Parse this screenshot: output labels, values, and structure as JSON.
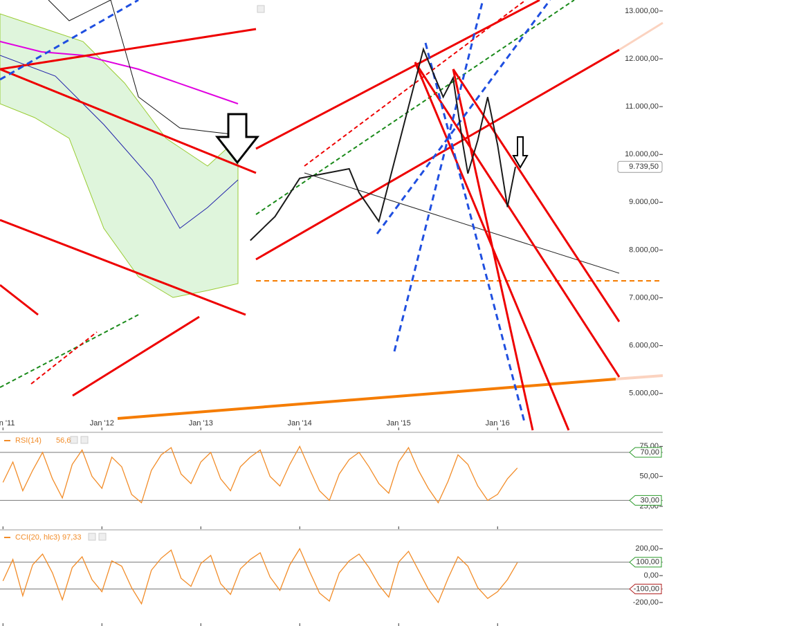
{
  "chart_data": [
    {
      "type": "line",
      "name": "price",
      "x": [
        2013.5,
        2013.75,
        2014.0,
        2014.25,
        2014.5,
        2014.6,
        2014.8,
        2014.95,
        2015.1,
        2015.25,
        2015.35,
        2015.45,
        2015.55,
        2015.65,
        2015.7,
        2015.8,
        2015.9,
        2016.0,
        2016.1,
        2016.18
      ],
      "values": [
        8200,
        8700,
        9500,
        9600,
        9700,
        9200,
        8600,
        9800,
        11000,
        12200,
        11700,
        11200,
        11600,
        10200,
        9600,
        10300,
        11200,
        10200,
        8900,
        9739.5
      ],
      "color": "#1a1a1a",
      "last": {
        "value": 9739.5,
        "label": "9.739,50"
      },
      "xlim": [
        2010.97,
        2017.67
      ],
      "xticks": [
        {
          "value": 2011,
          "label": "Jan '11"
        },
        {
          "value": 2012,
          "label": "Jan '12"
        },
        {
          "value": 2013,
          "label": "Jan '13"
        },
        {
          "value": 2014,
          "label": "Jan '14"
        },
        {
          "value": 2015,
          "label": "Jan '15"
        },
        {
          "value": 2016,
          "label": "Jan '16"
        }
      ],
      "ylim": [
        4230,
        13230
      ],
      "yticks": [
        {
          "value": 13000,
          "label": "13.000,00"
        },
        {
          "value": 12000,
          "label": "12.000,00"
        },
        {
          "value": 11000,
          "label": "11.000,00"
        },
        {
          "value": 10000,
          "label": "10.000,00"
        },
        {
          "value": 9000,
          "label": "9.000,00"
        },
        {
          "value": 8000,
          "label": "8.000,00"
        },
        {
          "value": 7000,
          "label": "7.000,00"
        },
        {
          "value": 6000,
          "label": "6.000,00"
        },
        {
          "value": 5000,
          "label": "5.000,00"
        }
      ]
    },
    {
      "type": "line",
      "name": "RSI(14)",
      "color": "#f28c28",
      "last": {
        "value": 56.63,
        "label": "56,63"
      },
      "x": [
        2011.0,
        2011.1,
        2011.2,
        2011.3,
        2011.4,
        2011.5,
        2011.6,
        2011.7,
        2011.8,
        2011.9,
        2012.0,
        2012.1,
        2012.2,
        2012.3,
        2012.4,
        2012.5,
        2012.6,
        2012.7,
        2012.8,
        2012.9,
        2013.0,
        2013.1,
        2013.2,
        2013.3,
        2013.4,
        2013.5,
        2013.6,
        2013.7,
        2013.8,
        2013.9,
        2014.0,
        2014.1,
        2014.2,
        2014.3,
        2014.4,
        2014.5,
        2014.6,
        2014.7,
        2014.8,
        2014.9,
        2015.0,
        2015.1,
        2015.2,
        2015.3,
        2015.4,
        2015.5,
        2015.6,
        2015.7,
        2015.8,
        2015.9,
        2016.0,
        2016.1,
        2016.2
      ],
      "values": [
        45,
        62,
        38,
        55,
        70,
        48,
        32,
        60,
        72,
        50,
        40,
        66,
        58,
        35,
        28,
        55,
        68,
        74,
        52,
        44,
        62,
        70,
        48,
        38,
        58,
        66,
        72,
        50,
        42,
        60,
        75,
        56,
        38,
        30,
        52,
        64,
        70,
        58,
        44,
        36,
        62,
        74,
        55,
        40,
        28,
        46,
        68,
        60,
        42,
        30,
        35,
        48,
        57
      ],
      "ylim": [
        6,
        85
      ],
      "yticks": [
        {
          "value": 75,
          "label": "75,00"
        },
        {
          "value": 50,
          "label": "50,00"
        },
        {
          "value": 25,
          "label": "25,00"
        }
      ],
      "levels": [
        {
          "value": 70,
          "label": "70,00"
        },
        {
          "value": 30,
          "label": "30,00"
        }
      ]
    },
    {
      "type": "line",
      "name": "CCI(20, hlc3)",
      "color": "#f28c28",
      "last": {
        "value": 97.33,
        "label": "97,33"
      },
      "x": [
        2011.0,
        2011.1,
        2011.2,
        2011.3,
        2011.4,
        2011.5,
        2011.6,
        2011.7,
        2011.8,
        2011.9,
        2012.0,
        2012.1,
        2012.2,
        2012.3,
        2012.4,
        2012.5,
        2012.6,
        2012.7,
        2012.8,
        2012.9,
        2013.0,
        2013.1,
        2013.2,
        2013.3,
        2013.4,
        2013.5,
        2013.6,
        2013.7,
        2013.8,
        2013.9,
        2014.0,
        2014.1,
        2014.2,
        2014.3,
        2014.4,
        2014.5,
        2014.6,
        2014.7,
        2014.8,
        2014.9,
        2015.0,
        2015.1,
        2015.2,
        2015.3,
        2015.4,
        2015.5,
        2015.6,
        2015.7,
        2015.8,
        2015.9,
        2016.0,
        2016.1,
        2016.2
      ],
      "values": [
        -40,
        120,
        -150,
        80,
        160,
        20,
        -180,
        60,
        140,
        -30,
        -120,
        110,
        70,
        -90,
        -210,
        40,
        130,
        190,
        -20,
        -80,
        90,
        150,
        -60,
        -140,
        50,
        120,
        170,
        -10,
        -110,
        80,
        200,
        30,
        -130,
        -190,
        20,
        110,
        160,
        60,
        -70,
        -160,
        100,
        180,
        40,
        -100,
        -200,
        -20,
        140,
        70,
        -90,
        -170,
        -120,
        -30,
        97
      ],
      "ylim": [
        -375,
        330
      ],
      "yticks": [
        {
          "value": 200,
          "label": "200,00"
        },
        {
          "value": 0,
          "label": "0,00"
        },
        {
          "value": -200,
          "label": "-200,00"
        }
      ],
      "levels": [
        {
          "value": 100,
          "label": "100,00"
        },
        {
          "value": -100,
          "label": "-100,00"
        }
      ]
    }
  ]
}
